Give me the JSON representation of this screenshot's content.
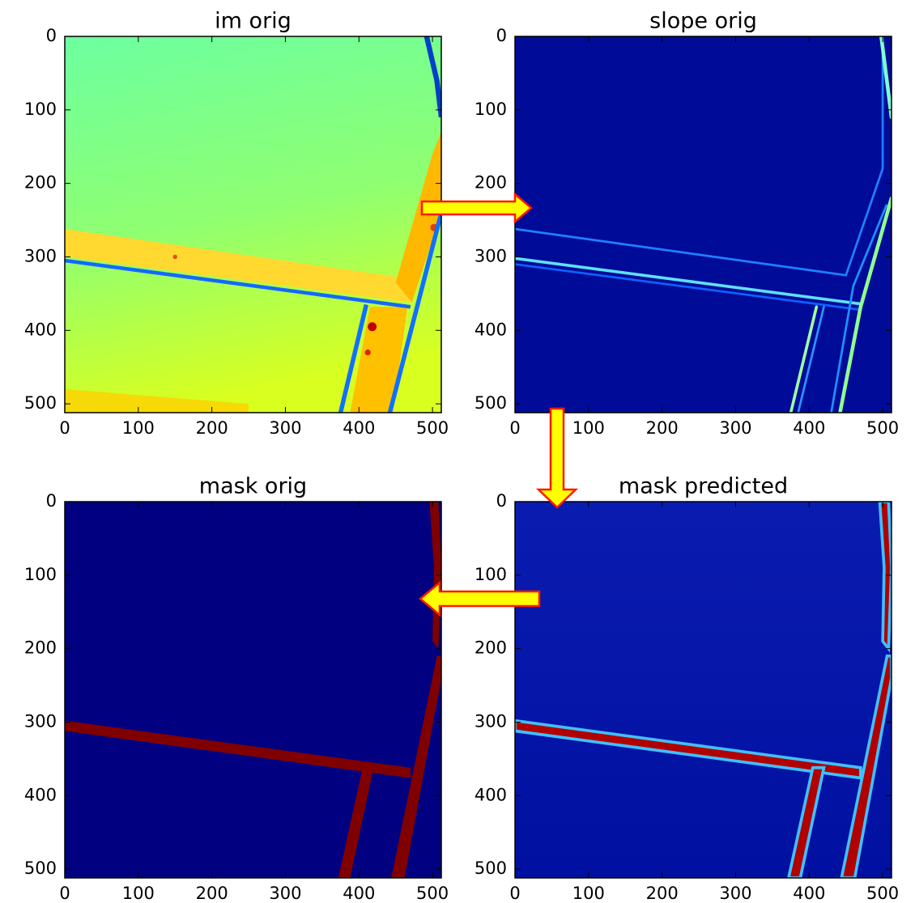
{
  "chart_data": [
    {
      "type": "image",
      "title": "im orig",
      "xlim": [
        0,
        512
      ],
      "ylim": [
        512,
        0
      ],
      "xticks": [
        0,
        100,
        200,
        300,
        400,
        500
      ],
      "yticks": [
        0,
        100,
        200,
        300,
        400,
        500
      ]
    },
    {
      "type": "image",
      "title": "slope orig",
      "xlim": [
        0,
        512
      ],
      "ylim": [
        512,
        0
      ],
      "xticks": [
        0,
        100,
        200,
        300,
        400,
        500
      ],
      "yticks": [
        0,
        100,
        200,
        300,
        400,
        500
      ]
    },
    {
      "type": "image",
      "title": "mask orig",
      "xlim": [
        0,
        512
      ],
      "ylim": [
        512,
        0
      ],
      "xticks": [
        0,
        100,
        200,
        300,
        400,
        500
      ],
      "yticks": [
        0,
        100,
        200,
        300,
        400,
        500
      ]
    },
    {
      "type": "image",
      "title": "mask predicted",
      "xlim": [
        0,
        512
      ],
      "ylim": [
        512,
        0
      ],
      "xticks": [
        0,
        100,
        200,
        300,
        400,
        500
      ],
      "yticks": [
        0,
        100,
        200,
        300,
        400,
        500
      ]
    }
  ]
}
